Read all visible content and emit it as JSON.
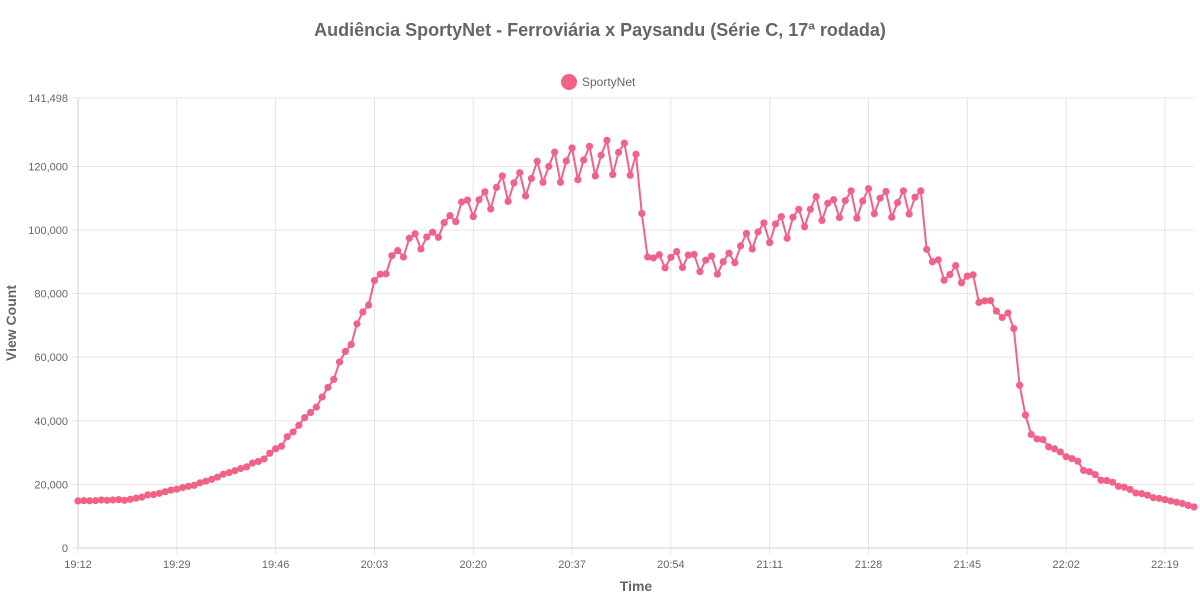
{
  "chart_data": {
    "type": "line",
    "title": "Audiência SportyNet - Ferroviária x Paysandu (Série C, 17ª rodada)",
    "xlabel": "Time",
    "ylabel": "View Count",
    "ylim": [
      0,
      141498
    ],
    "y_ticks": [
      "0",
      "20,000",
      "40,000",
      "60,000",
      "80,000",
      "100,000",
      "120,000",
      "141,498"
    ],
    "x_ticks": [
      "19:12",
      "19:29",
      "19:46",
      "20:03",
      "20:20",
      "20:37",
      "20:54",
      "21:11",
      "21:28",
      "21:45",
      "22:02",
      "22:19"
    ],
    "grid": true,
    "legend_position": "top-center",
    "series": [
      {
        "name": "SportyNet",
        "color": "#f06288",
        "values": [
          14800,
          14900,
          14850,
          14900,
          15100,
          15000,
          15100,
          15200,
          15000,
          15300,
          15700,
          16000,
          16700,
          16800,
          17200,
          17700,
          18200,
          18500,
          19000,
          19400,
          19700,
          20500,
          21000,
          21600,
          22300,
          23200,
          23700,
          24300,
          25000,
          25500,
          26700,
          27200,
          28000,
          29800,
          31200,
          32000,
          35000,
          36500,
          38600,
          41000,
          42600,
          44300,
          47500,
          50500,
          53000,
          58500,
          61800,
          64000,
          70500,
          74200,
          76400,
          84100,
          86100,
          86200,
          91900,
          93500,
          91500,
          97400,
          98800,
          94000,
          97800,
          99300,
          97700,
          102300,
          104500,
          102600,
          108800,
          109400,
          104200,
          109500,
          112000,
          106600,
          113400,
          117000,
          109000,
          114800,
          118000,
          110700,
          116200,
          121600,
          115000,
          120000,
          124500,
          115000,
          121700,
          125800,
          115800,
          122000,
          126300,
          117000,
          123500,
          128200,
          117400,
          124400,
          127300,
          117200,
          123800,
          105200,
          91500,
          91200,
          92200,
          88100,
          91400,
          93200,
          88200,
          92100,
          92300,
          86900,
          90500,
          91800,
          86100,
          90000,
          92700,
          89700,
          95000,
          98900,
          94000,
          99400,
          102200,
          96000,
          101900,
          104200,
          97400,
          104000,
          106500,
          101000,
          106500,
          110500,
          103000,
          108400,
          109500,
          103900,
          109200,
          112300,
          103700,
          109100,
          113000,
          105100,
          110000,
          112100,
          104000,
          108600,
          112300,
          105000,
          110300,
          112300,
          93900,
          90000,
          90600,
          84200,
          86000,
          88800,
          83400,
          85500,
          85900,
          77200,
          77700,
          77800,
          74500,
          72500,
          73900,
          69000,
          51200,
          41800,
          35700,
          34300,
          34100,
          31800,
          31200,
          30200,
          28700,
          28100,
          27300,
          24400,
          24000,
          23100,
          21300,
          21200,
          20700,
          19400,
          19100,
          18400,
          17300,
          17100,
          16600,
          15800,
          15600,
          15200,
          14800,
          14400,
          14000,
          13400,
          12900
        ]
      }
    ]
  }
}
